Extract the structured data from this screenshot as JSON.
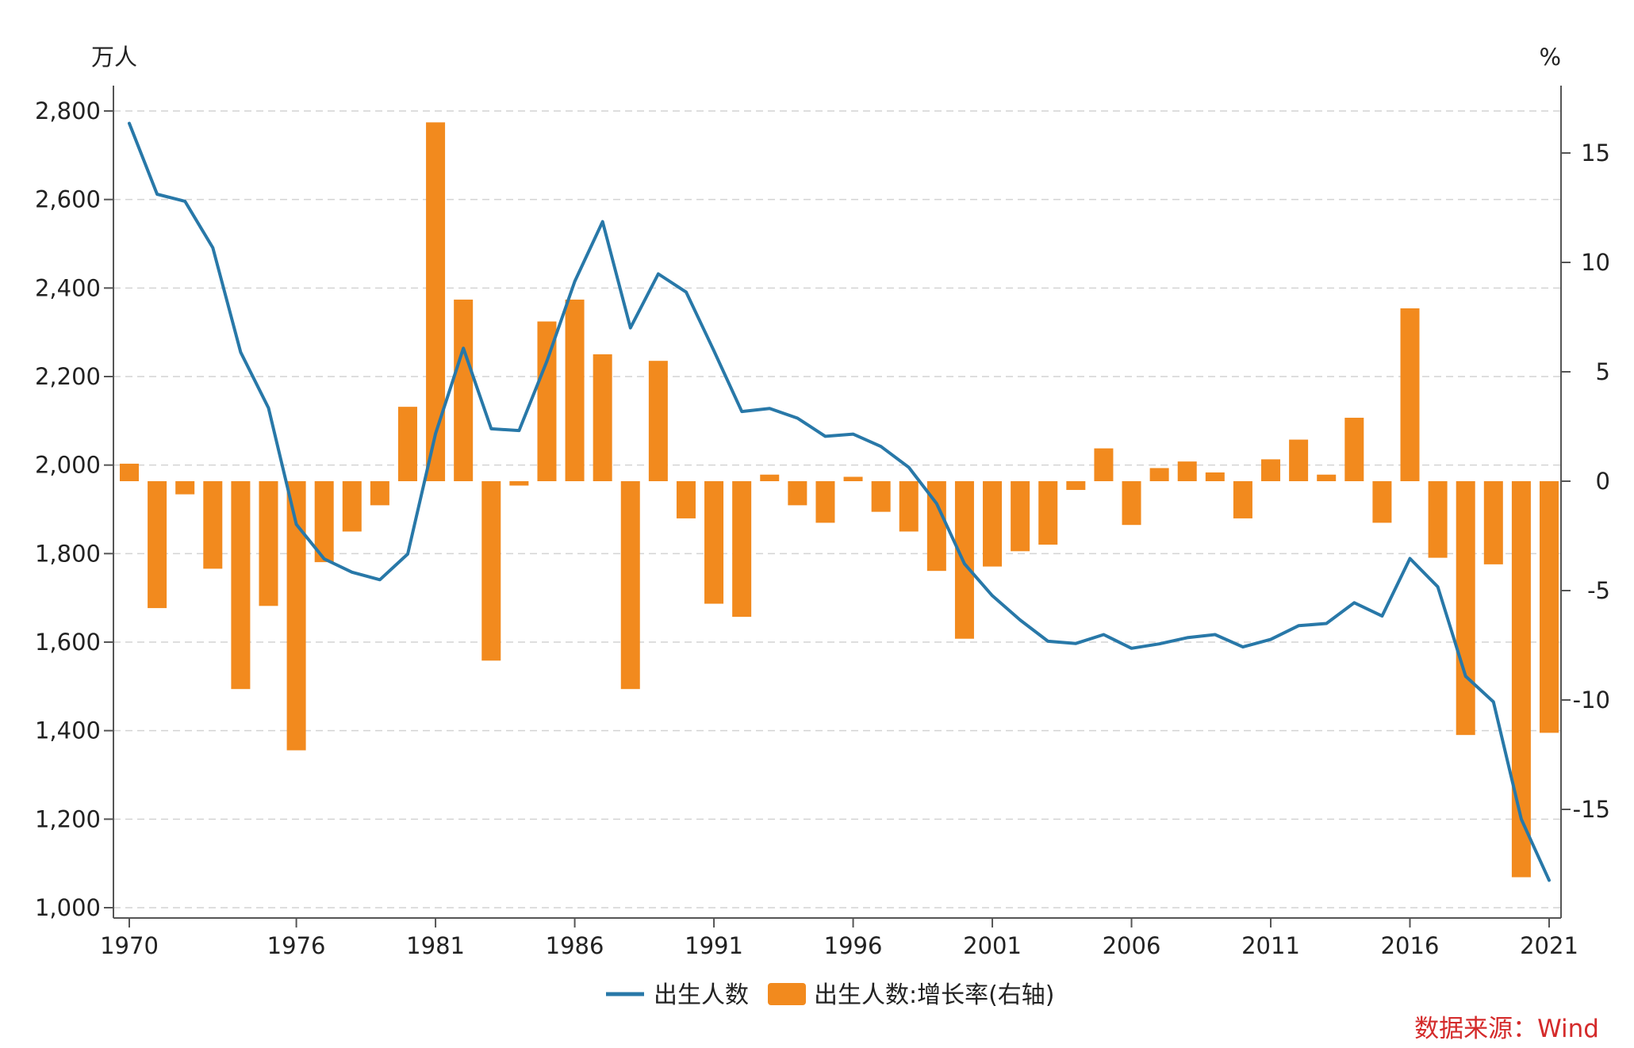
{
  "chart_data": {
    "type": "bar+line",
    "title": "",
    "left_axis": {
      "unit": "万人",
      "ylim": [
        1000,
        2800
      ],
      "ticks": [
        "1,000",
        "1,200",
        "1,400",
        "1,600",
        "1,800",
        "2,000",
        "2,200",
        "2,400",
        "2,600",
        "2,800"
      ],
      "tick_values": [
        1000,
        1200,
        1400,
        1600,
        1800,
        2000,
        2200,
        2400,
        2600,
        2800
      ]
    },
    "right_axis": {
      "unit": "%",
      "ylim": [
        -18.5,
        18
      ],
      "ticks": [
        "-15",
        "-10",
        "-5",
        "0",
        "5",
        "10",
        "15"
      ],
      "tick_values": [
        -15,
        -10,
        -5,
        0,
        5,
        10,
        15
      ]
    },
    "x_tick_labels": [
      "1970",
      "1976",
      "1981",
      "1986",
      "1991",
      "1996",
      "2001",
      "2006",
      "2011",
      "2016",
      "2021"
    ],
    "x_tick_years": [
      1970,
      1976,
      1981,
      1986,
      1991,
      1996,
      2001,
      2006,
      2011,
      2016,
      2021
    ],
    "years": [
      1970,
      1971,
      1972,
      1973,
      1974,
      1975,
      1976,
      1977,
      1978,
      1979,
      1980,
      1981,
      1982,
      1983,
      1984,
      1985,
      1986,
      1987,
      1988,
      1989,
      1990,
      1991,
      1992,
      1993,
      1994,
      1995,
      1996,
      1997,
      1998,
      1999,
      2000,
      2001,
      2002,
      2003,
      2004,
      2005,
      2006,
      2007,
      2008,
      2009,
      2010,
      2011,
      2012,
      2013,
      2014,
      2015,
      2016,
      2017,
      2018,
      2019,
      2020,
      2021
    ],
    "series": [
      {
        "name": "出生人数",
        "type": "line",
        "axis": "left",
        "color": "#2878a8",
        "values": [
          2772,
          2612,
          2596,
          2491,
          2255,
          2129,
          1866,
          1788,
          1758,
          1741,
          1799,
          2071,
          2264,
          2082,
          2078,
          2235,
          2415,
          2550,
          2310,
          2432,
          2391,
          2258,
          2121,
          2128,
          2106,
          2065,
          2070,
          2042,
          1995,
          1913,
          1777,
          1705,
          1650,
          1602,
          1597,
          1617,
          1586,
          1596,
          1610,
          1617,
          1589,
          1606,
          1637,
          1642,
          1689,
          1659,
          1789,
          1725,
          1523,
          1465,
          1200,
          1062
        ]
      },
      {
        "name": "出生人数:增长率(右轴)",
        "type": "bar",
        "axis": "right",
        "color": "#f28a1e",
        "values": [
          0.8,
          -5.8,
          -0.6,
          -4.0,
          -9.5,
          -5.7,
          -12.3,
          -3.7,
          -2.3,
          -1.1,
          3.4,
          16.4,
          8.3,
          -8.2,
          -0.2,
          7.3,
          8.3,
          5.8,
          -9.5,
          5.5,
          -1.7,
          -5.6,
          -6.2,
          0.3,
          -1.1,
          -1.9,
          0.2,
          -1.4,
          -2.3,
          -4.1,
          -7.2,
          -3.9,
          -3.2,
          -2.9,
          -0.4,
          1.5,
          -2.0,
          0.6,
          0.9,
          0.4,
          -1.7,
          1.0,
          1.9,
          0.3,
          2.9,
          -1.9,
          7.9,
          -3.5,
          -11.6,
          -3.8,
          -18.1,
          -11.5
        ]
      }
    ],
    "legend": [
      {
        "label": "出生人数",
        "marker": "line"
      },
      {
        "label": "出生人数:增长率(右轴)",
        "marker": "bar"
      }
    ],
    "legend_position": "bottom-center",
    "grid": "horizontal-dashed",
    "source": "数据来源：Wind",
    "source_color": "#d42a2a"
  }
}
